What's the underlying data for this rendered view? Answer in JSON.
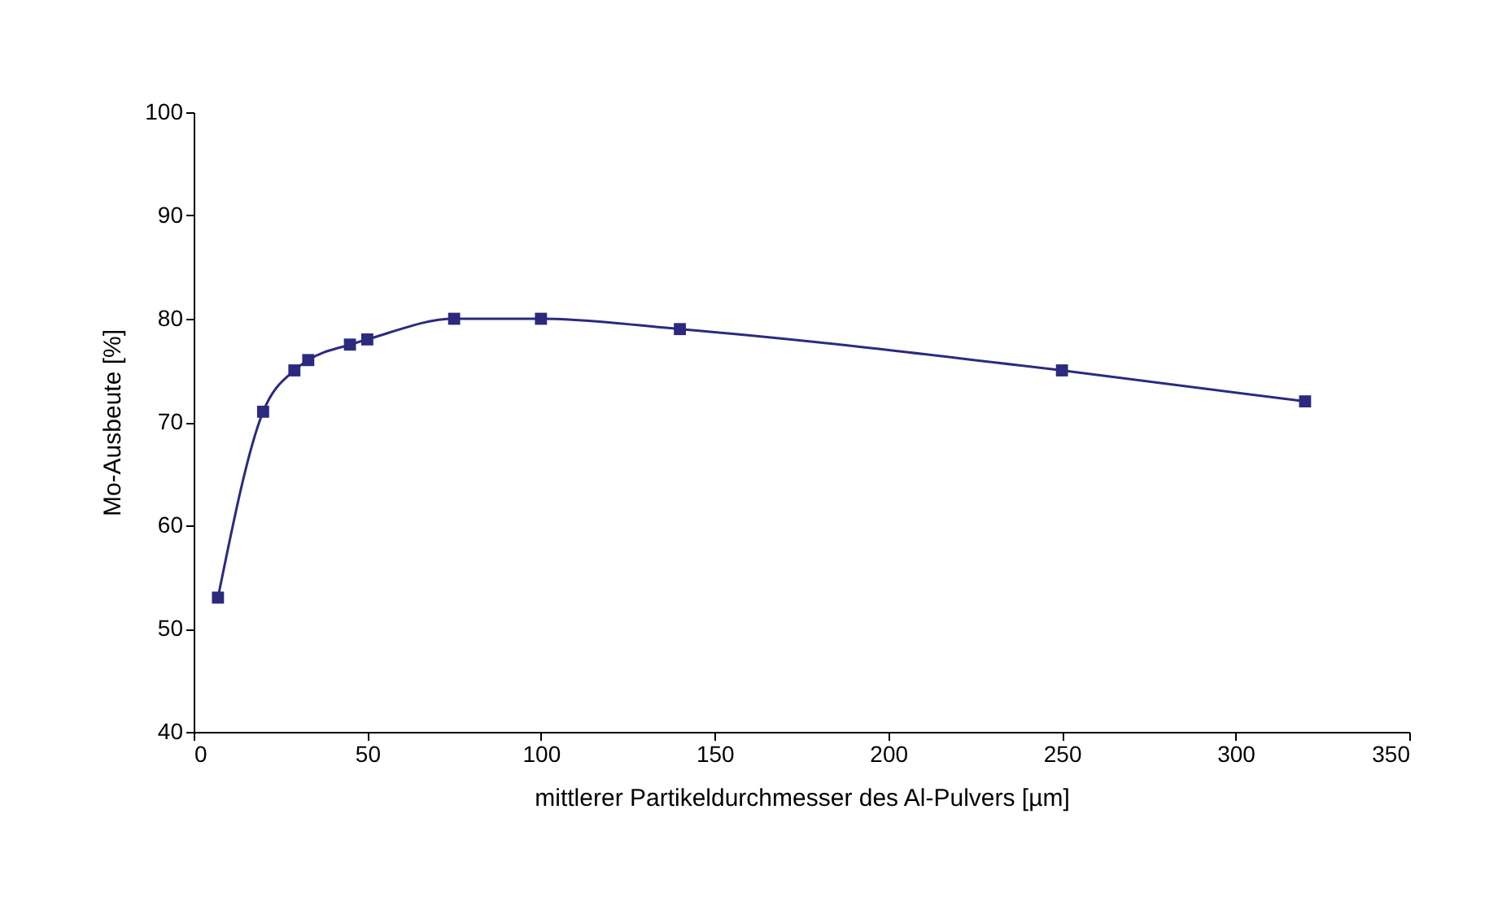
{
  "chart_data": {
    "type": "line",
    "xlabel": "mittlerer Partikeldurchmesser des Al-Pulvers [µm]",
    "ylabel": "Mo-Ausbeute [%]",
    "x": [
      7,
      20,
      29,
      33,
      45,
      50,
      75,
      100,
      140,
      250,
      320
    ],
    "series": [
      {
        "color": "#2b2a7f",
        "values": [
          53,
          71,
          75,
          76,
          77.5,
          78,
          80,
          80,
          79,
          75,
          72
        ]
      }
    ],
    "xlim": [
      0,
      350
    ],
    "xticks": [
      0,
      50,
      100,
      150,
      200,
      250,
      300,
      350
    ],
    "ylim": [
      40,
      100
    ],
    "yticks": [
      40,
      50,
      60,
      70,
      80,
      90,
      100
    ],
    "grid": false,
    "marker": "square",
    "line_style": "solid"
  }
}
